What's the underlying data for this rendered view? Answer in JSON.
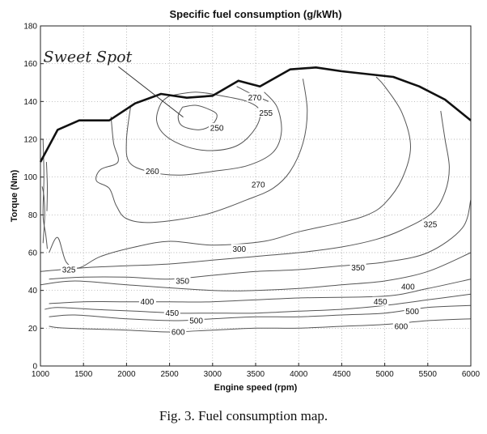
{
  "chart_data": {
    "type": "contour",
    "title": "Specific fuel consumption (g/kWh)",
    "xlabel": "Engine speed (rpm)",
    "ylabel": "Torque (Nm)",
    "xlim": [
      1000,
      6000
    ],
    "ylim": [
      0,
      180
    ],
    "xticks": [
      1000,
      1500,
      2000,
      2500,
      3000,
      3500,
      4000,
      4500,
      5000,
      5500,
      6000
    ],
    "yticks": [
      0,
      20,
      40,
      60,
      80,
      100,
      120,
      140,
      160,
      180
    ],
    "grid": "dotted",
    "max_torque_curve": [
      [
        1000,
        108
      ],
      [
        1200,
        125
      ],
      [
        1450,
        130
      ],
      [
        1800,
        130
      ],
      [
        2100,
        139
      ],
      [
        2400,
        144
      ],
      [
        2700,
        142
      ],
      [
        3000,
        143
      ],
      [
        3300,
        151
      ],
      [
        3550,
        148
      ],
      [
        3900,
        157
      ],
      [
        4200,
        158
      ],
      [
        4500,
        156
      ],
      [
        5100,
        153
      ],
      [
        5400,
        148
      ],
      [
        5700,
        141
      ],
      [
        6000,
        130
      ]
    ],
    "contours": [
      {
        "level": 250,
        "label": "250",
        "label_at": [
          3050,
          126
        ],
        "points": [
          [
            2650,
            137
          ],
          [
            2800,
            138
          ],
          [
            2950,
            136
          ],
          [
            3050,
            133
          ],
          [
            3000,
            128
          ],
          [
            2850,
            125
          ],
          [
            2650,
            127
          ],
          [
            2600,
            132
          ],
          [
            2650,
            137
          ]
        ]
      },
      {
        "level": 255,
        "label": "255",
        "label_at": [
          3620,
          134
        ],
        "points": [
          [
            2500,
            143
          ],
          [
            2800,
            145
          ],
          [
            3100,
            143
          ],
          [
            3400,
            140
          ],
          [
            3550,
            135
          ],
          [
            3500,
            126
          ],
          [
            3300,
            117
          ],
          [
            3000,
            114
          ],
          [
            2700,
            116
          ],
          [
            2450,
            122
          ],
          [
            2350,
            130
          ],
          [
            2400,
            139
          ],
          [
            2500,
            143
          ]
        ]
      },
      {
        "level": 260,
        "label": "260",
        "label_at": [
          2300,
          103
        ],
        "points": [
          [
            2050,
            138
          ],
          [
            2000,
            120
          ],
          [
            2030,
            108
          ],
          [
            2250,
            103
          ],
          [
            2600,
            101
          ],
          [
            3000,
            103
          ],
          [
            3400,
            106
          ],
          [
            3700,
            113
          ],
          [
            3800,
            124
          ],
          [
            3750,
            137
          ],
          [
            3600,
            145
          ]
        ]
      },
      {
        "level": 270,
        "label": "270",
        "label_at": [
          3530,
          96
        ],
        "points": [
          [
            1820,
            132
          ],
          [
            1850,
            118
          ],
          [
            1900,
            108
          ],
          [
            1700,
            104
          ],
          [
            1650,
            98
          ],
          [
            1800,
            94
          ],
          [
            1880,
            85
          ],
          [
            2000,
            78
          ],
          [
            2300,
            76
          ],
          [
            2900,
            80
          ],
          [
            3400,
            88
          ],
          [
            3700,
            94
          ],
          [
            3900,
            103
          ],
          [
            4050,
            118
          ],
          [
            4100,
            135
          ],
          [
            4050,
            152
          ]
        ]
      },
      {
        "level": 270,
        "label": "270",
        "label_at": [
          3490,
          142
        ],
        "points": [
          [
            3280,
            148
          ],
          [
            3450,
            144
          ],
          [
            3650,
            140
          ]
        ]
      },
      {
        "level": 300,
        "label": "300",
        "label_at": [
          3310,
          62
        ],
        "points": [
          [
            1100,
            60
          ],
          [
            1200,
            68
          ],
          [
            1300,
            55
          ],
          [
            1450,
            52
          ],
          [
            1700,
            58
          ],
          [
            2100,
            63
          ],
          [
            2500,
            66
          ],
          [
            3000,
            64
          ],
          [
            3600,
            66
          ],
          [
            4000,
            71
          ],
          [
            4500,
            76
          ],
          [
            4800,
            80
          ],
          [
            5000,
            86
          ],
          [
            5200,
            99
          ],
          [
            5300,
            116
          ],
          [
            5200,
            134
          ],
          [
            5000,
            148
          ],
          [
            4900,
            153
          ]
        ]
      },
      {
        "level": 325,
        "label": "325",
        "label_at": [
          5530,
          75
        ],
        "points": [
          [
            1000,
            50
          ],
          [
            1500,
            52
          ],
          [
            2000,
            53
          ],
          [
            2500,
            54
          ],
          [
            3000,
            56
          ],
          [
            3500,
            58
          ],
          [
            4000,
            60
          ],
          [
            4500,
            63
          ],
          [
            4900,
            67
          ],
          [
            5200,
            72
          ],
          [
            5550,
            81
          ],
          [
            5700,
            92
          ],
          [
            5750,
            105
          ],
          [
            5700,
            120
          ],
          [
            5650,
            135
          ]
        ]
      },
      {
        "level": 350,
        "label": "350",
        "label_at": [
          4690,
          52
        ],
        "points": [
          [
            1100,
            46
          ],
          [
            1500,
            47
          ],
          [
            2000,
            47
          ],
          [
            2500,
            46
          ],
          [
            3000,
            48
          ],
          [
            3500,
            50
          ],
          [
            4000,
            51
          ],
          [
            4500,
            53
          ],
          [
            5000,
            55
          ],
          [
            5500,
            60
          ],
          [
            5900,
            73
          ],
          [
            6000,
            88
          ]
        ]
      },
      {
        "level": 400,
        "label": "400",
        "label_at": [
          5270,
          42
        ],
        "points": [
          [
            1000,
            43
          ],
          [
            1400,
            45
          ],
          [
            2000,
            43
          ],
          [
            3000,
            40
          ],
          [
            3500,
            40
          ],
          [
            4000,
            41
          ],
          [
            4500,
            43
          ],
          [
            5000,
            45
          ],
          [
            5500,
            50
          ],
          [
            6000,
            60
          ]
        ]
      },
      {
        "level": 400,
        "label": "400",
        "label_at": [
          2250,
          34
        ],
        "points": [
          [
            1100,
            33
          ],
          [
            1500,
            34
          ],
          [
            2000,
            34
          ],
          [
            2500,
            34
          ],
          [
            3000,
            34
          ],
          [
            4000,
            36
          ],
          [
            5000,
            37
          ],
          [
            5500,
            41
          ],
          [
            6000,
            46
          ]
        ]
      },
      {
        "level": 450,
        "label": "450",
        "label_at": [
          2530,
          28
        ],
        "points": [
          [
            1050,
            30
          ],
          [
            1200,
            31
          ],
          [
            1600,
            30
          ],
          [
            2100,
            29
          ],
          [
            2600,
            28
          ],
          [
            3000,
            28
          ],
          [
            3500,
            28
          ],
          [
            4000,
            29
          ],
          [
            4500,
            30
          ],
          [
            5000,
            32
          ],
          [
            5500,
            35
          ],
          [
            6000,
            38
          ]
        ]
      },
      {
        "level": 500,
        "label": "500",
        "label_at": [
          5320,
          29
        ],
        "points": [
          [
            1100,
            26
          ],
          [
            1400,
            27
          ],
          [
            2000,
            25
          ],
          [
            2600,
            24
          ],
          [
            3000,
            25
          ],
          [
            3500,
            26
          ],
          [
            4000,
            26
          ],
          [
            4500,
            27
          ],
          [
            5000,
            28
          ],
          [
            5500,
            31
          ],
          [
            6000,
            32
          ]
        ]
      },
      {
        "level": 600,
        "label": "600",
        "label_at": [
          5190,
          21
        ],
        "points": [
          [
            1100,
            21
          ],
          [
            1300,
            20
          ],
          [
            2000,
            19
          ],
          [
            2500,
            18
          ],
          [
            3000,
            19
          ],
          [
            3500,
            20
          ],
          [
            4000,
            20
          ],
          [
            4500,
            21
          ],
          [
            5000,
            22
          ],
          [
            5500,
            24
          ],
          [
            6000,
            25
          ]
        ]
      },
      {
        "level": 600,
        "label": "600",
        "label_at": [
          2600,
          18
        ],
        "points": []
      },
      {
        "level": 325,
        "label": "325",
        "label_at": [
          1330,
          51
        ],
        "points": []
      },
      {
        "level": 350,
        "label": "350",
        "label_at": [
          2650,
          45
        ],
        "points": []
      },
      {
        "level": 500,
        "label": "500",
        "label_at": [
          2810,
          24
        ],
        "points": []
      },
      {
        "level": 450,
        "label": "450",
        "label_at": [
          4950,
          34
        ],
        "points": []
      },
      {
        "level": 400,
        "label": "400",
        "label_at": [
          2240,
          34
        ],
        "points": []
      }
    ],
    "low_speed_lines": [
      [
        [
          1030,
          120
        ],
        [
          1040,
          100
        ],
        [
          1030,
          80
        ],
        [
          1060,
          70
        ],
        [
          1080,
          62
        ]
      ],
      [
        [
          1070,
          108
        ],
        [
          1080,
          95
        ],
        [
          1075,
          82
        ]
      ],
      [
        [
          1020,
          95
        ],
        [
          1040,
          90
        ],
        [
          1050,
          80
        ],
        [
          1040,
          72
        ],
        [
          1030,
          65
        ]
      ]
    ],
    "annotation": {
      "text": "Sweet Spot",
      "anchor_start": [
        2000,
        155
      ],
      "anchor_end": [
        2800,
        130
      ]
    }
  },
  "caption": "Fig.  3. Fuel consumption map."
}
